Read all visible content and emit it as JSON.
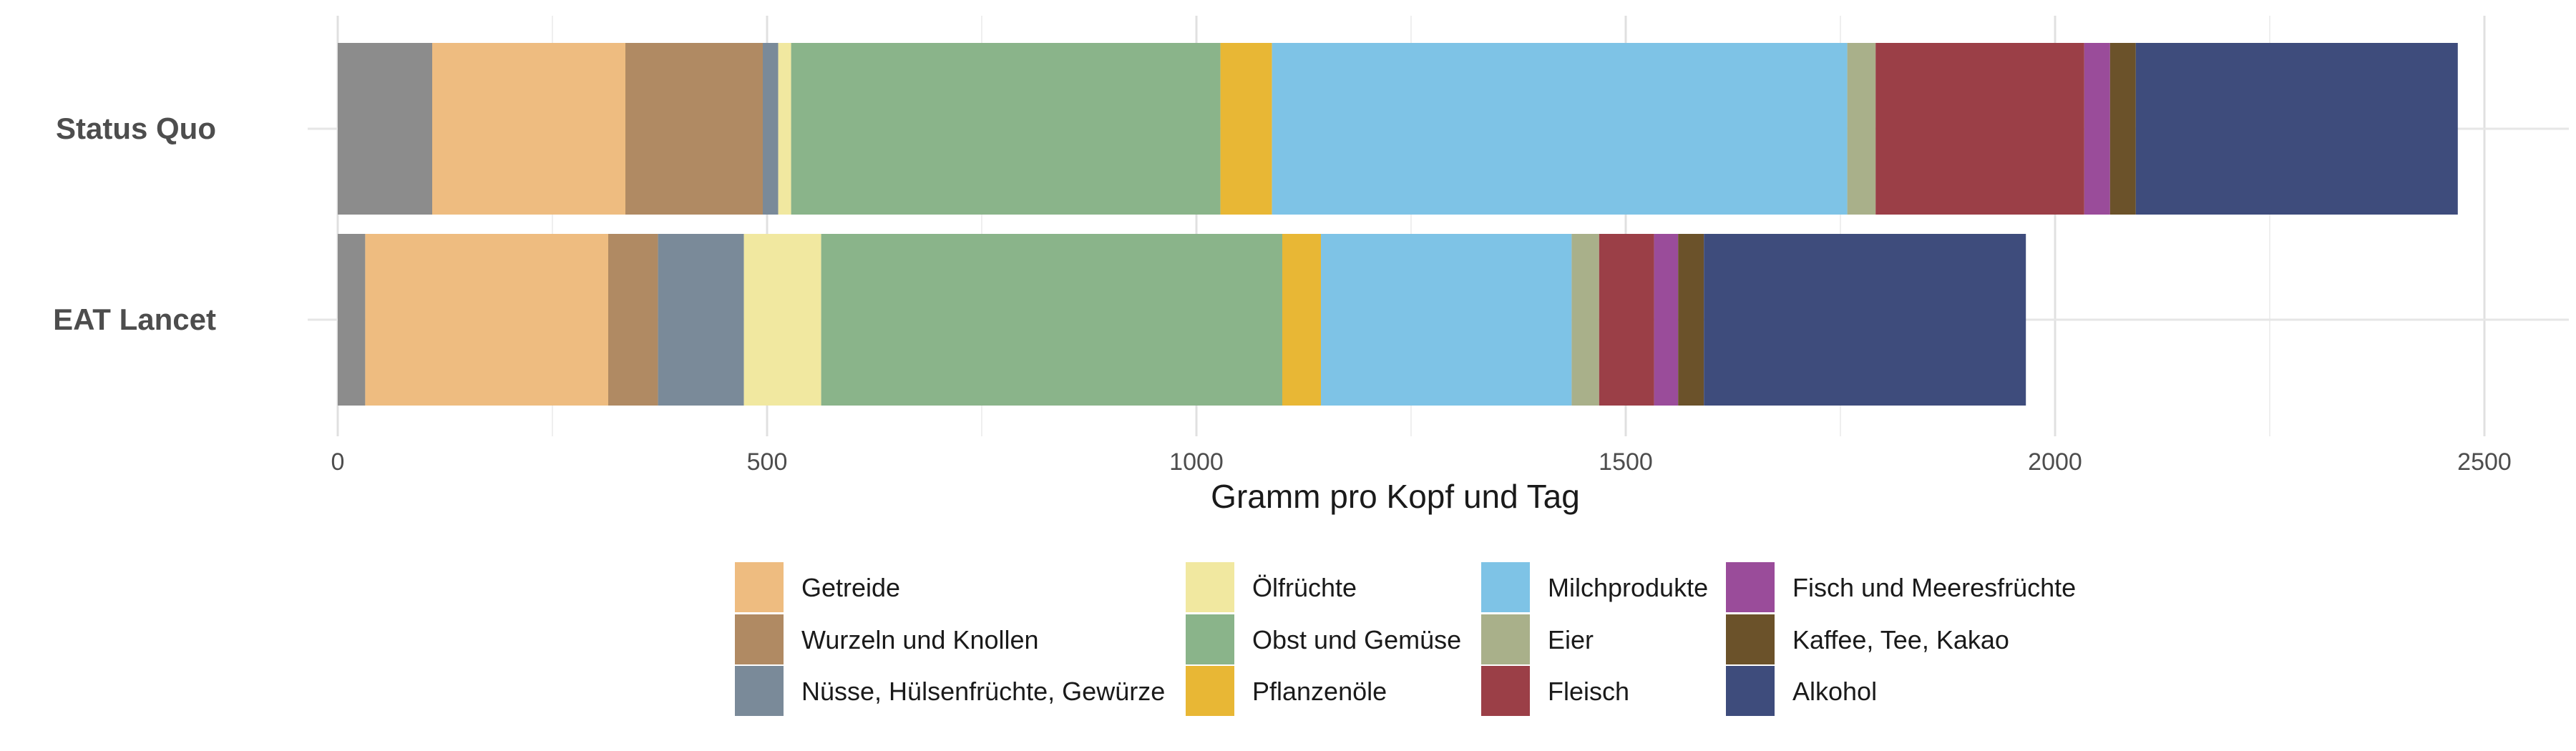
{
  "chart_data": {
    "type": "bar",
    "orientation": "horizontal",
    "stacked": true,
    "xlabel": "Gramm pro Kopf und Tag",
    "ylabel": "",
    "xlim": [
      0,
      2580
    ],
    "xticks": [
      0,
      500,
      1000,
      1500,
      2000,
      2500
    ],
    "categories": [
      "Status Quo",
      "EAT Lancet"
    ],
    "grid": true,
    "legend_position": "bottom",
    "series": [
      {
        "name": "",
        "color": "#8C8C8C",
        "values": [
          110,
          32
        ]
      },
      {
        "name": "Getreide",
        "color": "#EEBC80",
        "values": [
          225,
          283
        ]
      },
      {
        "name": "Wurzeln und Knollen",
        "color": "#B08A63",
        "values": [
          160,
          58
        ]
      },
      {
        "name": "Nüsse, Hülsenfrüchte, Gewürze",
        "color": "#7A8A99",
        "values": [
          18,
          100
        ]
      },
      {
        "name": "Ölfrüchte",
        "color": "#F1E8A0",
        "values": [
          15,
          90
        ]
      },
      {
        "name": "Obst und Gemüse",
        "color": "#8AB48A",
        "values": [
          500,
          537
        ]
      },
      {
        "name": "Pflanzenöle",
        "color": "#E8B735",
        "values": [
          60,
          45
        ]
      },
      {
        "name": "Milchprodukte",
        "color": "#7EC3E6",
        "values": [
          670,
          292
        ]
      },
      {
        "name": "Eier",
        "color": "#A9B08A",
        "values": [
          33,
          32
        ]
      },
      {
        "name": "Fleisch",
        "color": "#9B3F47",
        "values": [
          243,
          64
        ]
      },
      {
        "name": "Fisch und Meeresfrüchte",
        "color": "#9A4C9A",
        "values": [
          30,
          28
        ]
      },
      {
        "name": "Kaffee, Tee, Kakao",
        "color": "#6B522A",
        "values": [
          30,
          30
        ]
      },
      {
        "name": "Alkohol",
        "color": "#3E4C7C",
        "values": [
          375,
          375
        ]
      }
    ]
  }
}
